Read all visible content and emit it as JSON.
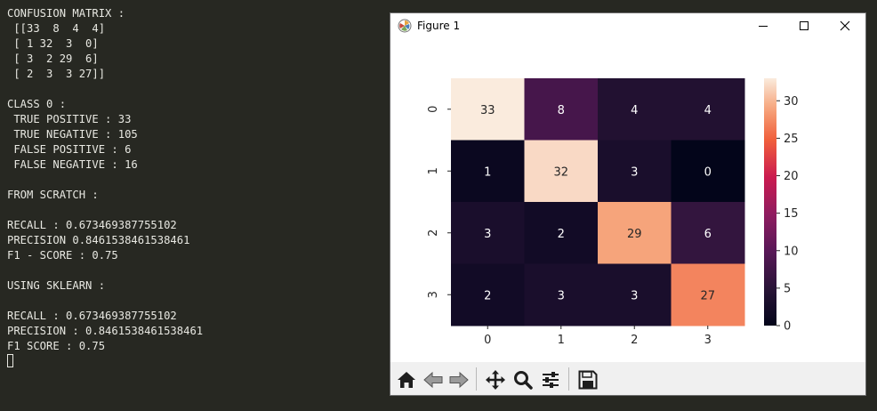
{
  "terminal": {
    "lines": [
      "CONFUSION MATRIX :",
      " [[33  8  4  4]",
      " [ 1 32  3  0]",
      " [ 3  2 29  6]",
      " [ 2  3  3 27]]",
      "",
      "CLASS 0 :",
      " TRUE POSITIVE : 33",
      " TRUE NEGATIVE : 105",
      " FALSE POSITIVE : 6",
      " FALSE NEGATIVE : 16",
      "",
      "FROM SCRATCH :",
      "",
      "RECALL : 0.673469387755102",
      "PRECISION 0.8461538461538461",
      "F1 - SCORE : 0.75",
      "",
      "USING SKLEARN :",
      "",
      "RECALL : 0.673469387755102",
      "PRECISION : 0.8461538461538461",
      "F1 SCORE : 0.75"
    ],
    "background": "#272822",
    "text_color": "#e8e8e2"
  },
  "window": {
    "title": "Figure 1",
    "controls": [
      "minimize-icon",
      "maximize-icon",
      "close-icon"
    ]
  },
  "toolbar": {
    "tools": [
      "home-icon",
      "back-arrow-icon",
      "forward-arrow-icon",
      "pan-move-icon",
      "zoom-magnifier-icon",
      "configure-subplots-icon",
      "save-floppy-icon"
    ]
  },
  "chart_data": {
    "type": "heatmap",
    "x_tick_labels": [
      "0",
      "1",
      "2",
      "3"
    ],
    "y_tick_labels": [
      "0",
      "1",
      "2",
      "3"
    ],
    "values": [
      [
        33,
        8,
        4,
        4
      ],
      [
        1,
        32,
        3,
        0
      ],
      [
        3,
        2,
        29,
        6
      ],
      [
        2,
        3,
        3,
        27
      ]
    ],
    "annotations": true,
    "colormap": "rocket",
    "colorbar": {
      "range": [
        0,
        33
      ],
      "ticks": [
        0,
        5,
        10,
        15,
        20,
        25,
        30
      ]
    }
  }
}
